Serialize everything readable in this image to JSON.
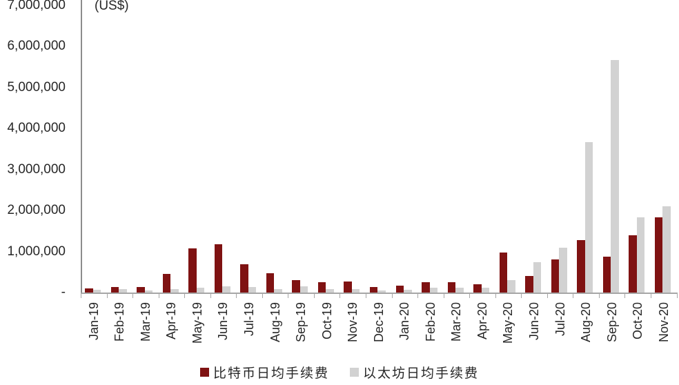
{
  "chart_data": {
    "type": "bar",
    "title": "",
    "unit_label": "(US$)",
    "xlabel": "",
    "ylabel": "(US$)",
    "categories": [
      "Jan-19",
      "Feb-19",
      "Mar-19",
      "Apr-19",
      "May-19",
      "Jun-19",
      "Jul-19",
      "Aug-19",
      "Sep-19",
      "Oct-19",
      "Nov-19",
      "Dec-19",
      "Jan-20",
      "Feb-20",
      "Mar-20",
      "Apr-20",
      "May-20",
      "Jun-20",
      "Jul-20",
      "Aug-20",
      "Sep-20",
      "Oct-20",
      "Nov-20"
    ],
    "series": [
      {
        "name": "比特币日均手续费",
        "color": "#7f1212",
        "values": [
          100000,
          140000,
          140000,
          450000,
          1080000,
          1170000,
          685000,
          475000,
          295000,
          250000,
          265000,
          135000,
          165000,
          245000,
          250000,
          200000,
          980000,
          410000,
          810000,
          1270000,
          880000,
          1390000,
          1840000
        ]
      },
      {
        "name": "以太坊日均手续费",
        "color": "#d2d2d2",
        "values": [
          65000,
          90000,
          55000,
          80000,
          125000,
          145000,
          135000,
          85000,
          155000,
          85000,
          90000,
          50000,
          60000,
          110000,
          120000,
          110000,
          310000,
          740000,
          1090000,
          3660000,
          5660000,
          1840000,
          2100000
        ]
      }
    ],
    "y_axis": {
      "min": 0,
      "max": 7000000,
      "tick_step": 1000000,
      "tick_labels": [
        "-",
        "1,000,000",
        "2,000,000",
        "3,000,000",
        "4,000,000",
        "5,000,000",
        "6,000,000",
        "7,000,000"
      ]
    },
    "grid": false,
    "legend_position": "bottom",
    "axis_color": "#a6a6a6",
    "text_color": "#262626"
  }
}
